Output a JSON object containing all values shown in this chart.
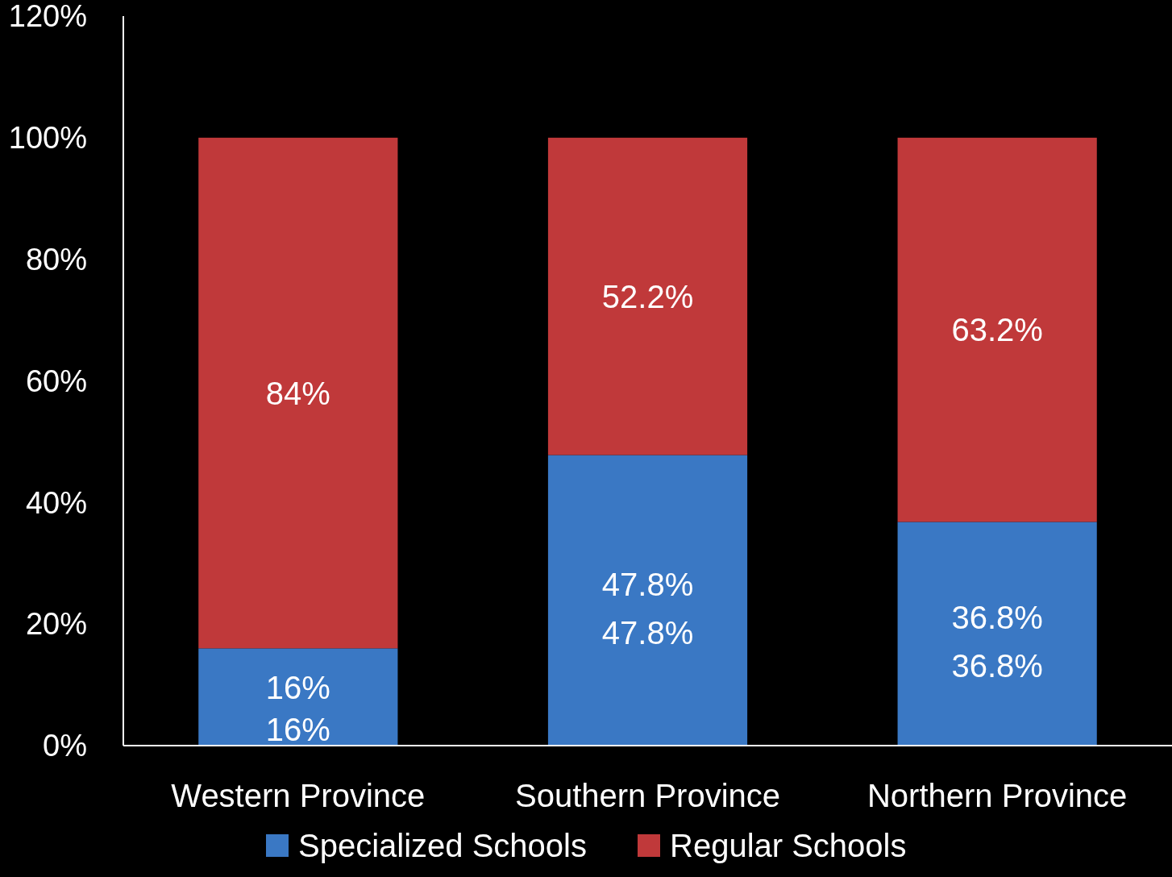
{
  "chart_data": {
    "type": "bar",
    "stacked": true,
    "categories": [
      "Western Province",
      "Southern Province",
      "Northern Province"
    ],
    "series": [
      {
        "name": "Specialized Schools",
        "color": "#3a78c4",
        "values": [
          16,
          47.8,
          36.8
        ],
        "value_labels": [
          "16%",
          "47.8%",
          "36.8%"
        ]
      },
      {
        "name": "Regular Schools",
        "color": "#c0393a",
        "values": [
          84,
          52.2,
          63.2
        ],
        "value_labels": [
          "84%",
          "52.2%",
          "63.2%"
        ]
      }
    ],
    "ylim": [
      0,
      120
    ],
    "yticks": [
      {
        "value": 0,
        "label": "0%"
      },
      {
        "value": 20,
        "label": "20%"
      },
      {
        "value": 40,
        "label": "40%"
      },
      {
        "value": 60,
        "label": "60%"
      },
      {
        "value": 80,
        "label": "80%"
      },
      {
        "value": 100,
        "label": "100%"
      },
      {
        "value": 120,
        "label": "120%"
      }
    ],
    "annotations": [
      "16%",
      "47.8%",
      "36.8%"
    ],
    "grid": false,
    "legend": "bottom"
  }
}
